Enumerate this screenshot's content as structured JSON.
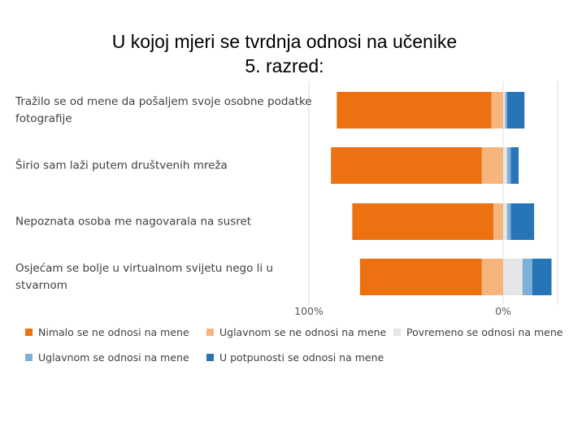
{
  "slide": {
    "title_line1": "U kojoj mjeri se tvrdnja odnosi na učenike",
    "title_line2": "5. razred:"
  },
  "chart_data": {
    "type": "bar",
    "orientation": "horizontal",
    "stacked": "diverging",
    "categories": [
      [
        "Tražilo se od mene da pošaljem svoje osobne podatke",
        "fotografije"
      ],
      [
        "Širio sam laži putem društvenih mreža"
      ],
      [
        "Nepoznata osoba me nagovarala na susret"
      ],
      [
        "Osjećam se bolje u virtualnom svijetu nego li u",
        "stvarnom"
      ]
    ],
    "series": [
      {
        "name": "Nimalo se ne odnosi na mene",
        "color": "#ED7011",
        "values": [
          80,
          78,
          73,
          63
        ]
      },
      {
        "name": "Uglavnom se ne odnosi na mene",
        "color": "#F7B57E",
        "values": [
          6,
          11,
          5,
          11
        ]
      },
      {
        "name": "Povremeno se odnosi na mene",
        "color": "#E6E6E6",
        "values": [
          1,
          2,
          2,
          10
        ]
      },
      {
        "name": "Uglavnom se odnosi na mene",
        "color": "#7FB1D8",
        "values": [
          1,
          2,
          2,
          5
        ]
      },
      {
        "name": "U potpunosti se odnosi na mene",
        "color": "#2775B6",
        "values": [
          9,
          4,
          12,
          10
        ]
      }
    ],
    "x_tick_labels": [
      "100%",
      "0%"
    ],
    "legend_position": "bottom"
  }
}
